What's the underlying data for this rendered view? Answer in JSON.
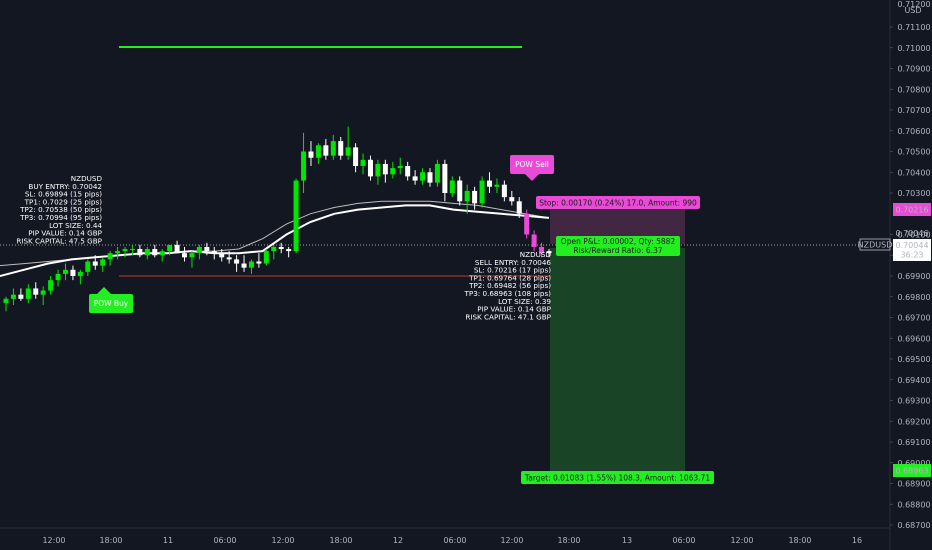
{
  "chart_data": {
    "type": "candlestick",
    "symbol": "NZDUSD",
    "currency": "USD",
    "price_top": "0.71200",
    "ylim": [
      0.6865,
      0.7123
    ],
    "y_ticks": [
      "0.71100",
      "0.71000",
      "0.70900",
      "0.70800",
      "0.70700",
      "0.70600",
      "0.70500",
      "0.70400",
      "0.70300",
      "0.70100",
      "0.70000",
      "0.69900",
      "0.69800",
      "0.69700",
      "0.69600",
      "0.69500",
      "0.69400",
      "0.69300",
      "0.69200",
      "0.69100",
      "0.69000",
      "0.68900",
      "0.68800",
      "0.68700"
    ],
    "x_ticks": [
      "12:00",
      "18:00",
      "11",
      "06:00",
      "12:00",
      "18:00",
      "12",
      "06:00",
      "12:00",
      "18:00",
      "13",
      "06:00",
      "12:00",
      "18:00",
      "16"
    ],
    "candles": [
      [
        0.6977,
        0.698,
        0.6973,
        0.6979
      ],
      [
        0.6979,
        0.6984,
        0.6976,
        0.6981
      ],
      [
        0.6981,
        0.6984,
        0.6978,
        0.6979
      ],
      [
        0.6979,
        0.6986,
        0.6977,
        0.6984
      ],
      [
        0.6984,
        0.6987,
        0.6979,
        0.6981
      ],
      [
        0.6981,
        0.6985,
        0.6976,
        0.6983
      ],
      [
        0.6983,
        0.699,
        0.6981,
        0.6988
      ],
      [
        0.6988,
        0.6993,
        0.6985,
        0.6991
      ],
      [
        0.6991,
        0.6996,
        0.6988,
        0.6993
      ],
      [
        0.6993,
        0.6995,
        0.6988,
        0.699
      ],
      [
        0.699,
        0.6993,
        0.6986,
        0.6992
      ],
      [
        0.6992,
        0.6998,
        0.699,
        0.6997
      ],
      [
        0.6997,
        0.7,
        0.6993,
        0.6995
      ],
      [
        0.6995,
        0.6999,
        0.6992,
        0.6998
      ],
      [
        0.6998,
        0.7002,
        0.6995,
        0.7001
      ],
      [
        0.7001,
        0.7004,
        0.6998,
        0.7002
      ],
      [
        0.7002,
        0.7004,
        0.6999,
        0.7003
      ],
      [
        0.7003,
        0.7005,
        0.7,
        0.7003
      ],
      [
        0.7003,
        0.7005,
        0.6999,
        0.7
      ],
      [
        0.7,
        0.7004,
        0.6998,
        0.7003
      ],
      [
        0.7003,
        0.7005,
        0.6999,
        0.7
      ],
      [
        0.7,
        0.7003,
        0.6997,
        0.7002
      ],
      [
        0.7002,
        0.7005,
        0.7,
        0.7005
      ],
      [
        0.7005,
        0.7007,
        0.7001,
        0.7001
      ],
      [
        0.7001,
        0.7004,
        0.6997,
        0.6999
      ],
      [
        0.6999,
        0.7002,
        0.6994,
        0.7001
      ],
      [
        0.7001,
        0.7005,
        0.6998,
        0.7004
      ],
      [
        0.7004,
        0.7006,
        0.7,
        0.7002
      ],
      [
        0.7002,
        0.7004,
        0.6998,
        0.7001
      ],
      [
        0.7001,
        0.7003,
        0.6997,
        0.6999
      ],
      [
        0.6999,
        0.7002,
        0.6996,
        0.6998
      ],
      [
        0.6998,
        0.7,
        0.6992,
        0.6996
      ],
      [
        0.6996,
        0.7,
        0.6992,
        0.6994
      ],
      [
        0.6994,
        0.6998,
        0.6991,
        0.6997
      ],
      [
        0.6997,
        0.7001,
        0.6994,
        0.6996
      ],
      [
        0.6996,
        0.7003,
        0.6995,
        0.7002
      ],
      [
        0.7002,
        0.7005,
        0.6998,
        0.7004
      ],
      [
        0.7004,
        0.7006,
        0.7001,
        0.7003
      ],
      [
        0.7003,
        0.7004,
        0.6999,
        0.7002
      ],
      [
        0.7002,
        0.7037,
        0.7001,
        0.7036
      ],
      [
        0.7036,
        0.7059,
        0.703,
        0.705
      ],
      [
        0.705,
        0.7055,
        0.7043,
        0.7047
      ],
      [
        0.7047,
        0.7054,
        0.7044,
        0.7053
      ],
      [
        0.7053,
        0.7056,
        0.7046,
        0.7048
      ],
      [
        0.7048,
        0.7058,
        0.7046,
        0.7055
      ],
      [
        0.7055,
        0.7057,
        0.7046,
        0.7048
      ],
      [
        0.7048,
        0.7062,
        0.7046,
        0.7052
      ],
      [
        0.7052,
        0.7054,
        0.704,
        0.7043
      ],
      [
        0.7043,
        0.7049,
        0.7039,
        0.7046
      ],
      [
        0.7046,
        0.7048,
        0.7036,
        0.7038
      ],
      [
        0.7038,
        0.7046,
        0.7034,
        0.7044
      ],
      [
        0.7044,
        0.7046,
        0.7035,
        0.7039
      ],
      [
        0.7039,
        0.7045,
        0.7037,
        0.7042
      ],
      [
        0.7042,
        0.7047,
        0.7039,
        0.7043
      ],
      [
        0.7043,
        0.7045,
        0.7036,
        0.7038
      ],
      [
        0.7038,
        0.7041,
        0.7034,
        0.7036
      ],
      [
        0.7036,
        0.7042,
        0.7034,
        0.704
      ],
      [
        0.704,
        0.7042,
        0.7033,
        0.7035
      ],
      [
        0.7035,
        0.7046,
        0.7033,
        0.7044
      ],
      [
        0.7044,
        0.7046,
        0.7026,
        0.703
      ],
      [
        0.703,
        0.7038,
        0.7028,
        0.7036
      ],
      [
        0.7036,
        0.7038,
        0.7024,
        0.7026
      ],
      [
        0.7026,
        0.7034,
        0.702,
        0.7031
      ],
      [
        0.7031,
        0.7033,
        0.7022,
        0.7025
      ],
      [
        0.7025,
        0.7038,
        0.7023,
        0.7036
      ],
      [
        0.7036,
        0.704,
        0.703,
        0.7033
      ],
      [
        0.7033,
        0.7037,
        0.703,
        0.7034
      ],
      [
        0.7034,
        0.7036,
        0.7026,
        0.7028
      ],
      [
        0.7028,
        0.7031,
        0.7024,
        0.7026
      ],
      [
        0.7026,
        0.7028,
        0.7018,
        0.702
      ],
      [
        0.702,
        0.7022,
        0.7008,
        0.701
      ],
      [
        0.701,
        0.7012,
        0.7002,
        0.7004
      ],
      [
        0.7004,
        0.7006,
        0.6999,
        0.7001
      ],
      [
        0.7001,
        0.7003,
        0.6999,
        0.7002
      ]
    ],
    "overlays": {
      "green_line_level": 0.71,
      "red_line_level": 0.699,
      "current_price_level": 0.70044,
      "ma_slow": [
        0.6995,
        0.6996,
        0.6997,
        0.6998,
        0.6999,
        0.7,
        0.7001,
        0.7001,
        0.7002,
        0.7002,
        0.7003,
        0.7008,
        0.7015,
        0.702,
        0.7023,
        0.7025,
        0.7026,
        0.7026,
        0.7026,
        0.7025,
        0.7024,
        0.7022,
        0.702,
        0.7018
      ],
      "ma_fast": [
        0.699,
        0.6993,
        0.6996,
        0.6998,
        0.6999,
        0.7,
        0.7001,
        0.7001,
        0.7002,
        0.7001,
        0.7001,
        0.7002,
        0.701,
        0.7016,
        0.702,
        0.7022,
        0.7023,
        0.7024,
        0.7024,
        0.7022,
        0.7021,
        0.702,
        0.7019,
        0.7018
      ]
    }
  },
  "buy_block": {
    "lines": [
      "NZDUSD",
      "BUY ENTRY: 0.70042",
      "SL: 0.69894 (15 pips)",
      "TP1: 0.7029 (25 pips)",
      "TP2: 0.70538 (50 pips)",
      "TP3: 0.70994 (95 pips)",
      "LOT SIZE: 0.44",
      "PIP VALUE: 0.14 GBP",
      "RISK CAPITAL: 47.5 GBP"
    ]
  },
  "sell_block": {
    "lines": [
      "NZDUSD",
      "SELL ENTRY: 0.70046",
      "SL: 0.70216 (17 pips)",
      "TP1: 0.69764 (28 pips)",
      "TP2: 0.69482 (56 pips)",
      "TP3: 0.68963 (108 pips)",
      "LOT SIZE: 0.39",
      "PIP VALUE: 0.14 GBP",
      "RISK CAPITAL: 47.1 GBP"
    ]
  },
  "labels": {
    "pow_buy": "POW Buy",
    "pow_sell": "POW Sell",
    "stop": "Stop: 0.00170 (0.24%) 17.0, Amount: 990",
    "open_pnl": "Open P&L: 0.00002, Qty: 5882",
    "rr_ratio": "Risk/Reward Ratio: 6.37",
    "target": "Target: 0.01083 (1.55%) 108.3, Amount: 1063.71"
  },
  "price_tags": {
    "stop_price": "0.70216",
    "entry_price": "0.70046",
    "current_price": "0.70044",
    "countdown": "36:23",
    "target_price": "0.68963"
  },
  "colors": {
    "background": "#131722",
    "bull": "#00e600",
    "bear": "#ffffff",
    "stop_zone": "#4a2a48",
    "target_zone": "#1b4a27",
    "magenta": "#e94ad6",
    "green_line": "#22ee22",
    "red_line": "#c0392b"
  }
}
